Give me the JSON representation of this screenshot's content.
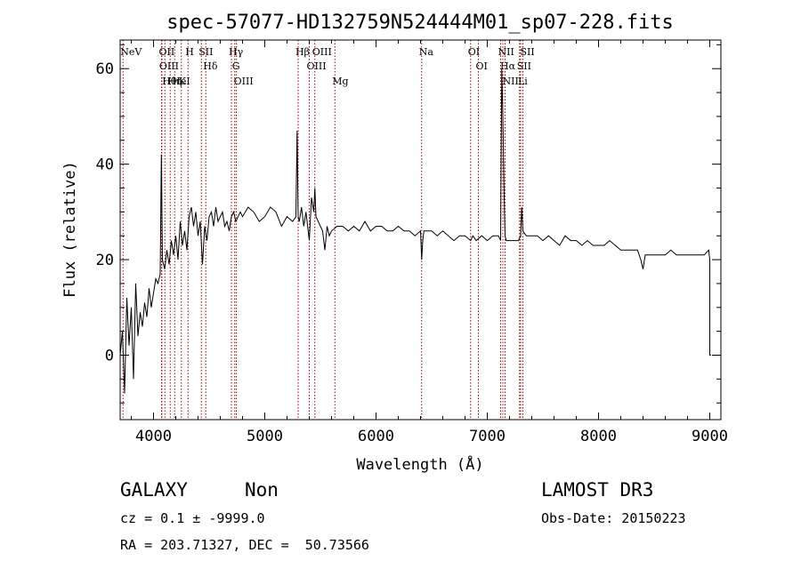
{
  "chart_data": {
    "type": "line",
    "title": "spec-57077-HD132759N524444M01_sp07-228.fits",
    "xlabel": "Wavelength (Å)",
    "ylabel": "Flux (relative)",
    "xlim": [
      3700,
      9100
    ],
    "ylim": [
      -13.5,
      66
    ],
    "xticks": [
      4000,
      5000,
      6000,
      7000,
      8000,
      9000
    ],
    "yticks": [
      0,
      20,
      40,
      60
    ],
    "series": [
      {
        "name": "spectrum",
        "x": [
          3700,
          3720,
          3740,
          3760,
          3780,
          3800,
          3820,
          3840,
          3860,
          3880,
          3900,
          3920,
          3940,
          3960,
          3980,
          4000,
          4020,
          4040,
          4060,
          4070,
          4080,
          4100,
          4120,
          4140,
          4160,
          4180,
          4200,
          4220,
          4240,
          4260,
          4280,
          4300,
          4320,
          4340,
          4360,
          4380,
          4400,
          4420,
          4440,
          4460,
          4480,
          4500,
          4520,
          4540,
          4560,
          4580,
          4600,
          4620,
          4640,
          4660,
          4680,
          4700,
          4720,
          4740,
          4760,
          4780,
          4800,
          4850,
          4900,
          4950,
          5000,
          5050,
          5100,
          5150,
          5200,
          5250,
          5280,
          5290,
          5300,
          5310,
          5330,
          5350,
          5370,
          5400,
          5420,
          5440,
          5450,
          5460,
          5480,
          5500,
          5520,
          5540,
          5560,
          5580,
          5600,
          5650,
          5700,
          5750,
          5800,
          5850,
          5900,
          5950,
          6000,
          6050,
          6100,
          6150,
          6200,
          6250,
          6300,
          6350,
          6400,
          6410,
          6420,
          6430,
          6450,
          6500,
          6550,
          6600,
          6650,
          6700,
          6750,
          6800,
          6850,
          6870,
          6900,
          6950,
          7000,
          7050,
          7100,
          7120,
          7130,
          7140,
          7150,
          7160,
          7170,
          7200,
          7250,
          7280,
          7300,
          7310,
          7320,
          7350,
          7400,
          7450,
          7500,
          7550,
          7600,
          7650,
          7700,
          7750,
          7800,
          7850,
          7900,
          7950,
          8000,
          8050,
          8100,
          8150,
          8200,
          8250,
          8300,
          8350,
          8380,
          8400,
          8420,
          8450,
          8500,
          8550,
          8600,
          8650,
          8700,
          8750,
          8800,
          8850,
          8900,
          8950,
          8990,
          9000,
          9000,
          9010
        ],
        "y": [
          0,
          5,
          -8,
          12,
          2,
          10,
          -5,
          15,
          4,
          9,
          6,
          11,
          8,
          14,
          10,
          13,
          16,
          15,
          17,
          42,
          20,
          18,
          22,
          19,
          24,
          21,
          25,
          20,
          28,
          23,
          26,
          22,
          29,
          31,
          27,
          30,
          25,
          28,
          19,
          27,
          24,
          29,
          30,
          27,
          31,
          28,
          29,
          30,
          27,
          28,
          26,
          29,
          30,
          28,
          29,
          30,
          29,
          31,
          30,
          28,
          29,
          31,
          30,
          27,
          29,
          28,
          29,
          47,
          29,
          28,
          31,
          27,
          30,
          24,
          33,
          30,
          35,
          29,
          28,
          27,
          26,
          22,
          27,
          25,
          26,
          27,
          27,
          26,
          27,
          26,
          28,
          26,
          27,
          27,
          26,
          26,
          27,
          26,
          26,
          25,
          26,
          20,
          24,
          26,
          26,
          26,
          25,
          26,
          25,
          24,
          25,
          25,
          24,
          25,
          24,
          25,
          24,
          25,
          25,
          24,
          60,
          50,
          35,
          25,
          24,
          24,
          24,
          24,
          25,
          31,
          26,
          25,
          25,
          25,
          24,
          25,
          24,
          23,
          25,
          24,
          24,
          23,
          24,
          23,
          23,
          23,
          24,
          23,
          22,
          22,
          22,
          22,
          20,
          18,
          21,
          21,
          21,
          21,
          21,
          22,
          21,
          21,
          21,
          21,
          21,
          21,
          22,
          20,
          0,
          0
        ]
      }
    ],
    "lines": [
      {
        "name": "NeV",
        "x": 3726
      },
      {
        "name": "OII",
        "x": 4072
      },
      {
        "name": "OIII",
        "x": 4075
      },
      {
        "name": "Hθ",
        "x": 4102
      },
      {
        "name": "Hη",
        "x": 4150
      },
      {
        "name": "HeI",
        "x": 4190
      },
      {
        "name": "K",
        "x": 4250
      },
      {
        "name": "H",
        "x": 4310
      },
      {
        "name": "SII",
        "x": 4430
      },
      {
        "name": "Hδ",
        "x": 4470
      },
      {
        "name": "Hγ",
        "x": 4700
      },
      {
        "name": "G",
        "x": 4730
      },
      {
        "name": "OIII",
        "x": 4745
      },
      {
        "name": "Hβ",
        "x": 5300
      },
      {
        "name": "OIII",
        "x": 5400
      },
      {
        "name": "OIII",
        "x": 5450
      },
      {
        "name": "Mg",
        "x": 5630
      },
      {
        "name": "Na",
        "x": 6410
      },
      {
        "name": "OI",
        "x": 6850
      },
      {
        "name": "OI",
        "x": 6920
      },
      {
        "name": "NII",
        "x": 7120
      },
      {
        "name": "Hα",
        "x": 7140
      },
      {
        "name": "NII",
        "x": 7160
      },
      {
        "name": "SII",
        "x": 7290
      },
      {
        "name": "Li",
        "x": 7300
      },
      {
        "name": "SII",
        "x": 7320
      }
    ]
  },
  "meta": {
    "class": "GALAXY",
    "subclass": "Non",
    "survey": "LAMOST DR3",
    "cz": "cz = 0.1 ± -9999.0",
    "obs_date": "Obs-Date: 20150223",
    "radec": "RA = 203.71327, DEC =  50.73566"
  }
}
